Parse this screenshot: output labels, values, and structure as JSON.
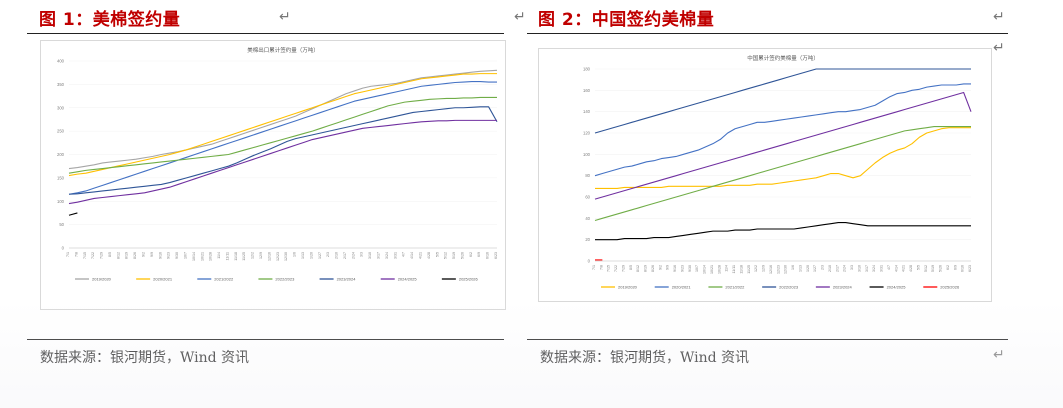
{
  "figure1": {
    "title": "图 1：美棉签约量",
    "source": "数据来源：银河期货，Wind 资讯",
    "para_mark": "↵",
    "chart_data": {
      "type": "line",
      "title": "美棉出口累计签约量（万吨）",
      "ylim": [
        0,
        400
      ],
      "yticks": [
        "0",
        "50",
        "100",
        "150",
        "200",
        "250",
        "300",
        "350",
        "400"
      ],
      "x": [
        "7/1",
        "7/8",
        "7/15",
        "7/22",
        "7/29",
        "8/5",
        "8/12",
        "8/19",
        "8/26",
        "9/2",
        "9/9",
        "9/16",
        "9/23",
        "9/30",
        "10/7",
        "10/14",
        "10/21",
        "10/28",
        "11/4",
        "11/11",
        "11/18",
        "11/25",
        "12/2",
        "12/9",
        "12/16",
        "12/23",
        "12/30",
        "1/6",
        "1/13",
        "1/20",
        "1/27",
        "2/3",
        "2/10",
        "2/17",
        "2/24",
        "3/3",
        "3/10",
        "3/17",
        "3/24",
        "3/31",
        "4/7",
        "4/14",
        "4/21",
        "4/28",
        "5/5",
        "5/12",
        "5/19",
        "5/26",
        "6/2",
        "6/9",
        "6/16",
        "6/23"
      ],
      "series": [
        {
          "name": "2019/2020",
          "color": "#a6a6a6",
          "values": [
            170,
            172,
            175,
            178,
            182,
            184,
            186,
            188,
            190,
            193,
            196,
            200,
            203,
            206,
            210,
            214,
            218,
            222,
            228,
            234,
            240,
            246,
            252,
            258,
            264,
            270,
            276,
            282,
            290,
            298,
            306,
            314,
            322,
            330,
            336,
            342,
            346,
            348,
            350,
            352,
            356,
            360,
            364,
            366,
            368,
            370,
            372,
            374,
            376,
            378,
            379,
            380
          ]
        },
        {
          "name": "2020/2021",
          "color": "#ffc000",
          "values": [
            155,
            158,
            160,
            164,
            168,
            172,
            176,
            180,
            184,
            188,
            192,
            196,
            200,
            205,
            210,
            216,
            222,
            228,
            234,
            240,
            246,
            252,
            258,
            264,
            270,
            276,
            282,
            288,
            294,
            300,
            306,
            312,
            318,
            324,
            330,
            334,
            338,
            342,
            346,
            350,
            354,
            358,
            362,
            364,
            366,
            368,
            370,
            372,
            372,
            373,
            373,
            373
          ]
        },
        {
          "name": "2021/2022",
          "color": "#4472c4",
          "values": [
            115,
            118,
            122,
            128,
            134,
            140,
            146,
            152,
            158,
            164,
            170,
            176,
            182,
            188,
            194,
            200,
            206,
            212,
            218,
            224,
            230,
            236,
            242,
            248,
            254,
            260,
            266,
            272,
            278,
            284,
            290,
            296,
            302,
            308,
            314,
            318,
            322,
            326,
            330,
            334,
            338,
            342,
            346,
            348,
            350,
            352,
            354,
            355,
            356,
            356,
            355,
            355
          ]
        },
        {
          "name": "2022/2023",
          "color": "#70ad47",
          "values": [
            160,
            163,
            166,
            168,
            170,
            172,
            174,
            176,
            178,
            180,
            182,
            184,
            186,
            188,
            190,
            192,
            194,
            196,
            198,
            200,
            205,
            210,
            215,
            220,
            225,
            230,
            235,
            240,
            245,
            250,
            256,
            262,
            268,
            274,
            280,
            286,
            292,
            298,
            304,
            308,
            312,
            314,
            316,
            318,
            319,
            320,
            320,
            321,
            321,
            322,
            322,
            322
          ]
        },
        {
          "name": "2023/2024",
          "color": "#2f5597",
          "values": [
            115,
            116,
            118,
            120,
            122,
            124,
            126,
            128,
            130,
            132,
            134,
            136,
            140,
            145,
            150,
            155,
            160,
            165,
            170,
            175,
            182,
            190,
            198,
            205,
            212,
            220,
            228,
            234,
            238,
            242,
            246,
            250,
            254,
            258,
            262,
            266,
            270,
            274,
            278,
            282,
            286,
            290,
            292,
            294,
            296,
            298,
            300,
            300,
            301,
            302,
            302,
            270
          ]
        },
        {
          "name": "2024/2025",
          "color": "#7030a0",
          "values": [
            95,
            98,
            102,
            106,
            108,
            110,
            112,
            114,
            116,
            118,
            122,
            126,
            130,
            136,
            142,
            148,
            154,
            160,
            166,
            172,
            178,
            184,
            190,
            196,
            202,
            208,
            214,
            220,
            226,
            232,
            236,
            240,
            244,
            248,
            252,
            256,
            258,
            260,
            262,
            264,
            266,
            268,
            270,
            271,
            272,
            272,
            273,
            273,
            273,
            273,
            273,
            273
          ]
        },
        {
          "name": "2025/2026",
          "color": "#000000",
          "values": [
            70,
            75,
            null,
            null,
            null,
            null,
            null,
            null,
            null,
            null,
            null,
            null,
            null,
            null,
            null,
            null,
            null,
            null,
            null,
            null,
            null,
            null,
            null,
            null,
            null,
            null,
            null,
            null,
            null,
            null,
            null,
            null,
            null,
            null,
            null,
            null,
            null,
            null,
            null,
            null,
            null,
            null,
            null,
            null,
            null,
            null,
            null,
            null,
            null,
            null,
            null,
            null
          ]
        }
      ]
    }
  },
  "figure2": {
    "title": "图 2：中国签约美棉量",
    "source": "数据来源：银河期货，Wind 资讯",
    "para_mark": "↵",
    "chart_data": {
      "type": "line",
      "title": "中国累计签约美棉量（万吨）",
      "ylim": [
        0,
        180
      ],
      "yticks": [
        "0",
        "20",
        "40",
        "60",
        "80",
        "100",
        "120",
        "140",
        "160",
        "180"
      ],
      "x": [
        "7/1",
        "7/8",
        "7/15",
        "7/22",
        "7/29",
        "8/5",
        "8/12",
        "8/19",
        "8/26",
        "9/2",
        "9/9",
        "9/16",
        "9/23",
        "9/30",
        "10/7",
        "10/14",
        "10/21",
        "10/28",
        "11/4",
        "11/11",
        "11/18",
        "11/25",
        "12/2",
        "12/9",
        "12/16",
        "12/23",
        "12/30",
        "1/6",
        "1/13",
        "1/20",
        "1/27",
        "2/3",
        "2/10",
        "2/17",
        "2/24",
        "3/3",
        "3/10",
        "3/17",
        "3/24",
        "3/31",
        "4/7",
        "4/14",
        "4/21",
        "4/28",
        "5/5",
        "5/12",
        "5/19",
        "5/26",
        "6/2",
        "6/9",
        "6/16",
        "6/23"
      ],
      "series": [
        {
          "name": "2019/2020",
          "color": "#ffc000",
          "values": [
            68,
            68,
            68,
            68,
            69,
            69,
            69,
            69,
            69,
            69,
            70,
            70,
            70,
            70,
            70,
            70,
            70,
            70,
            71,
            71,
            71,
            71,
            72,
            72,
            72,
            73,
            74,
            75,
            76,
            77,
            78,
            80,
            82,
            82,
            80,
            78,
            80,
            86,
            92,
            97,
            101,
            104,
            106,
            110,
            116,
            120,
            122,
            124,
            125,
            125,
            125,
            125
          ]
        },
        {
          "name": "2020/2021",
          "color": "#4472c4",
          "values": [
            80,
            82,
            84,
            86,
            88,
            89,
            91,
            93,
            94,
            96,
            97,
            98,
            100,
            102,
            104,
            107,
            110,
            114,
            120,
            124,
            126,
            128,
            130,
            130,
            131,
            132,
            133,
            134,
            135,
            136,
            137,
            138,
            139,
            140,
            140,
            141,
            142,
            144,
            146,
            150,
            154,
            157,
            158,
            160,
            161,
            163,
            164,
            165,
            165,
            165,
            166,
            166
          ]
        },
        {
          "name": "2021/2022",
          "color": "#70ad47",
          "values": [
            38,
            40,
            42,
            44,
            46,
            48,
            50,
            52,
            54,
            56,
            58,
            60,
            62,
            64,
            66,
            68,
            70,
            72,
            74,
            76,
            78,
            80,
            82,
            84,
            86,
            88,
            90,
            92,
            94,
            96,
            98,
            100,
            102,
            104,
            106,
            108,
            110,
            112,
            114,
            116,
            118,
            120,
            122,
            123,
            124,
            125,
            126,
            126,
            126,
            126,
            126,
            126
          ]
        },
        {
          "name": "2022/2023",
          "color": "#2f5597",
          "values": [
            120,
            122,
            124,
            126,
            128,
            130,
            132,
            134,
            136,
            138,
            140,
            142,
            144,
            146,
            148,
            150,
            152,
            154,
            156,
            158,
            160,
            162,
            164,
            166,
            168,
            170,
            172,
            174,
            176,
            178,
            180,
            180,
            180,
            180,
            180,
            180,
            180,
            180,
            180,
            180,
            180,
            180,
            180,
            180,
            180,
            180,
            180,
            180,
            180,
            180,
            180,
            180
          ]
        },
        {
          "name": "2023/2024",
          "color": "#7030a0",
          "values": [
            58,
            60,
            62,
            64,
            66,
            68,
            70,
            72,
            74,
            76,
            78,
            80,
            82,
            84,
            86,
            88,
            90,
            92,
            94,
            96,
            98,
            100,
            102,
            104,
            106,
            108,
            110,
            112,
            114,
            116,
            118,
            120,
            122,
            124,
            126,
            128,
            130,
            132,
            134,
            136,
            138,
            140,
            142,
            144,
            146,
            148,
            150,
            152,
            154,
            156,
            158,
            140
          ]
        },
        {
          "name": "2024/2025",
          "color": "#000000",
          "values": [
            20,
            20,
            20,
            20,
            21,
            21,
            21,
            21,
            22,
            22,
            22,
            23,
            24,
            25,
            26,
            27,
            28,
            28,
            28,
            29,
            29,
            29,
            30,
            30,
            30,
            30,
            30,
            30,
            31,
            32,
            33,
            34,
            35,
            36,
            36,
            35,
            34,
            33,
            33,
            33,
            33,
            33,
            33,
            33,
            33,
            33,
            33,
            33,
            33,
            33,
            33,
            33
          ]
        },
        {
          "name": "2025/2026",
          "color": "#ff0000",
          "values": [
            1,
            1,
            null,
            null,
            null,
            null,
            null,
            null,
            null,
            null,
            null,
            null,
            null,
            null,
            null,
            null,
            null,
            null,
            null,
            null,
            null,
            null,
            null,
            null,
            null,
            null,
            null,
            null,
            null,
            null,
            null,
            null,
            null,
            null,
            null,
            null,
            null,
            null,
            null,
            null,
            null,
            null,
            null,
            null,
            null,
            null,
            null,
            null,
            null,
            null,
            null,
            null
          ]
        }
      ]
    }
  }
}
